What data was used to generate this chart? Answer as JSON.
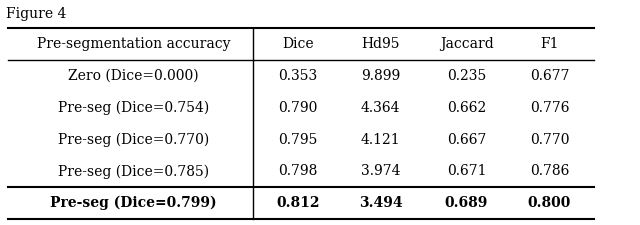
{
  "title": "Figure 4",
  "col_headers": [
    "Pre-segmentation accuracy",
    "Dice",
    "Hd95",
    "Jaccard",
    "F1"
  ],
  "rows": [
    [
      "Zero (Dice=0.000)",
      "0.353",
      "9.899",
      "0.235",
      "0.677"
    ],
    [
      "Pre-seg (Dice=0.754)",
      "0.790",
      "4.364",
      "0.662",
      "0.776"
    ],
    [
      "Pre-seg (Dice=0.770)",
      "0.795",
      "4.121",
      "0.667",
      "0.770"
    ],
    [
      "Pre-seg (Dice=0.785)",
      "0.798",
      "3.974",
      "0.671",
      "0.786"
    ],
    [
      "Pre-seg (Dice=0.799)",
      "0.812",
      "3.494",
      "0.689",
      "0.800"
    ]
  ],
  "last_row_bold": true,
  "bg_color": "white",
  "figsize": [
    6.4,
    2.25
  ],
  "dpi": 100
}
